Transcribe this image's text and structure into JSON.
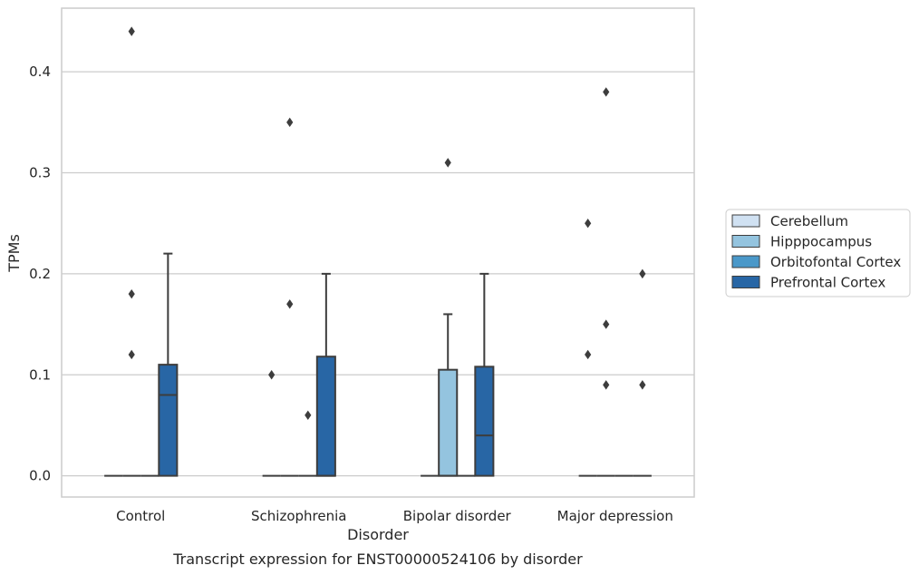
{
  "chart_data": {
    "type": "box",
    "xlabel": "Disorder",
    "ylabel": "TPMs",
    "caption": "Transcript expression for ENST00000524106 by disorder",
    "ylim": [
      -0.021,
      0.463
    ],
    "yticks": [
      "0.0",
      "0.1",
      "0.2",
      "0.3",
      "0.4"
    ],
    "ytick_values": [
      0.0,
      0.1,
      0.2,
      0.3,
      0.4
    ],
    "grid": "horizontal",
    "legend_position": "right",
    "categories": [
      "Control",
      "Schizophrenia",
      "Bipolar disorder",
      "Major depression"
    ],
    "series": [
      {
        "name": "Cerebellum",
        "color": "#d0e1f2",
        "boxes": [
          {
            "q1": 0,
            "median": 0,
            "q3": 0,
            "whisker_low": 0,
            "whisker_high": 0,
            "outliers": []
          },
          {
            "q1": 0,
            "median": 0,
            "q3": 0,
            "whisker_low": 0,
            "whisker_high": 0,
            "outliers": [
              0.1
            ]
          },
          {
            "q1": 0,
            "median": 0,
            "q3": 0,
            "whisker_low": 0,
            "whisker_high": 0,
            "outliers": []
          },
          {
            "q1": 0,
            "median": 0,
            "q3": 0,
            "whisker_low": 0,
            "whisker_high": 0,
            "outliers": [
              0.25,
              0.12
            ]
          }
        ]
      },
      {
        "name": "Hipppocampus",
        "color": "#94c4df",
        "boxes": [
          {
            "q1": 0,
            "median": 0,
            "q3": 0,
            "whisker_low": 0,
            "whisker_high": 0,
            "outliers": [
              0.44,
              0.18,
              0.12
            ]
          },
          {
            "q1": 0,
            "median": 0,
            "q3": 0,
            "whisker_low": 0,
            "whisker_high": 0,
            "outliers": [
              0.35,
              0.17
            ]
          },
          {
            "q1": 0,
            "median": 0,
            "q3": 0.105,
            "whisker_low": 0,
            "whisker_high": 0.16,
            "outliers": [
              0.31
            ]
          },
          {
            "q1": 0,
            "median": 0,
            "q3": 0,
            "whisker_low": 0,
            "whisker_high": 0,
            "outliers": [
              0.38,
              0.15,
              0.09
            ]
          }
        ]
      },
      {
        "name": "Orbitofontal Cortex",
        "color": "#4a98c9",
        "boxes": [
          {
            "q1": 0,
            "median": 0,
            "q3": 0,
            "whisker_low": 0,
            "whisker_high": 0,
            "outliers": []
          },
          {
            "q1": 0,
            "median": 0,
            "q3": 0,
            "whisker_low": 0,
            "whisker_high": 0,
            "outliers": [
              0.06
            ]
          },
          {
            "q1": 0,
            "median": 0,
            "q3": 0,
            "whisker_low": 0,
            "whisker_high": 0,
            "outliers": []
          },
          {
            "q1": 0,
            "median": 0,
            "q3": 0,
            "whisker_low": 0,
            "whisker_high": 0,
            "outliers": []
          }
        ]
      },
      {
        "name": "Prefrontal Cortex",
        "color": "#2866a5",
        "boxes": [
          {
            "q1": 0,
            "median": 0.08,
            "q3": 0.11,
            "whisker_low": 0,
            "whisker_high": 0.22,
            "outliers": []
          },
          {
            "q1": 0,
            "median": 0,
            "q3": 0.118,
            "whisker_low": 0,
            "whisker_high": 0.2,
            "outliers": []
          },
          {
            "q1": 0,
            "median": 0.04,
            "q3": 0.108,
            "whisker_low": 0,
            "whisker_high": 0.2,
            "outliers": []
          },
          {
            "q1": 0,
            "median": 0,
            "q3": 0,
            "whisker_low": 0,
            "whisker_high": 0,
            "outliers": [
              0.2,
              0.09
            ]
          }
        ]
      }
    ]
  }
}
